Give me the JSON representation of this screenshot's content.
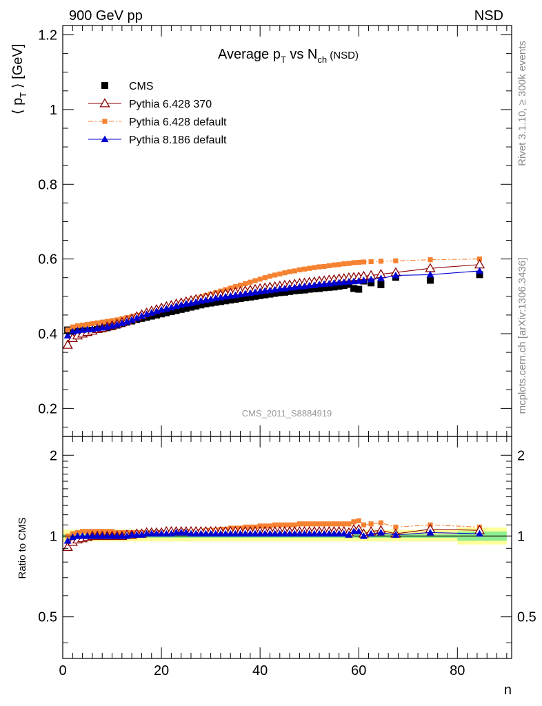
{
  "header": {
    "left": "900 GeV pp",
    "right": "NSD",
    "plot_title_main": "Average p",
    "plot_title_sub": "T",
    "plot_title_mid": " vs N",
    "plot_title_sub2": "ch",
    "plot_title_tail": " (NSD)",
    "analysis_id": "CMS_2011_S8884919",
    "side_text_top": "Rivet 3.1.10, ≥ 300k events",
    "side_text_bottom": "mcplots.cern.ch [arXiv:1306.3436]"
  },
  "axes": {
    "main_ylabel_pre": "⟨ p",
    "main_ylabel_sub": "T",
    "main_ylabel_post": " ⟩ [GeV]",
    "ratio_ylabel": "Ratio to CMS",
    "xlabel": "n"
  },
  "chart_data": [
    {
      "type": "scatter",
      "panel": "main",
      "xlim": [
        0,
        91
      ],
      "ylim": [
        0.125,
        1.225
      ],
      "yticks": [
        0.2,
        0.4,
        0.6,
        0.8,
        1,
        1.2
      ],
      "ytick_labels": [
        "0.2",
        "0.4",
        "0.6",
        "0.8",
        "1",
        "1.2"
      ],
      "legend_position": "top-left",
      "series": [
        {
          "name": "CMS",
          "color": "#000000",
          "marker": "square",
          "x": [
            1,
            2,
            3,
            4,
            5,
            6,
            7,
            8,
            9,
            10,
            11,
            12,
            13,
            14,
            15,
            16,
            17,
            18,
            19,
            20,
            21,
            22,
            23,
            24,
            25,
            26,
            27,
            28,
            29,
            30,
            31,
            32,
            33,
            34,
            35,
            36,
            37,
            38,
            39,
            40,
            41,
            42,
            43,
            44,
            45,
            46,
            47,
            48,
            49,
            50,
            51,
            52,
            53,
            54,
            55,
            56,
            57,
            58,
            59,
            60,
            61,
            62.5,
            64.5,
            67.5,
            74.5,
            84.5
          ],
          "values": [
            0.41,
            0.408,
            0.407,
            0.407,
            0.408,
            0.409,
            0.411,
            0.413,
            0.416,
            0.419,
            0.423,
            0.427,
            0.431,
            0.434,
            0.438,
            0.441,
            0.444,
            0.447,
            0.45,
            0.453,
            0.456,
            0.459,
            0.462,
            0.465,
            0.468,
            0.471,
            0.474,
            0.477,
            0.48,
            0.482,
            0.484,
            0.486,
            0.488,
            0.49,
            0.492,
            0.494,
            0.496,
            0.498,
            0.5,
            0.502,
            0.504,
            0.506,
            0.508,
            0.51,
            0.511,
            0.513,
            0.515,
            0.516,
            0.517,
            0.519,
            0.52,
            0.521,
            0.523,
            0.524,
            0.525,
            0.527,
            0.529,
            0.532,
            0.521,
            0.519,
            0.541,
            0.536,
            0.531,
            0.551,
            0.543,
            0.558
          ]
        },
        {
          "name": "Pythia 6.428 370",
          "color": "#8b0000",
          "marker": "triangle-open",
          "line": "solid",
          "x": [
            1,
            2,
            3,
            4,
            5,
            6,
            7,
            8,
            9,
            10,
            11,
            12,
            13,
            14,
            15,
            16,
            17,
            18,
            19,
            20,
            21,
            22,
            23,
            24,
            25,
            26,
            27,
            28,
            29,
            30,
            31,
            32,
            33,
            34,
            35,
            36,
            37,
            38,
            39,
            40,
            41,
            42,
            43,
            44,
            45,
            46,
            47,
            48,
            49,
            50,
            51,
            52,
            53,
            54,
            55,
            56,
            57,
            58,
            59,
            60,
            61,
            62.5,
            64.5,
            67.5,
            74.5,
            84.5
          ],
          "values": [
            0.37,
            0.388,
            0.395,
            0.4,
            0.404,
            0.408,
            0.412,
            0.415,
            0.419,
            0.422,
            0.426,
            0.43,
            0.435,
            0.44,
            0.446,
            0.451,
            0.456,
            0.461,
            0.465,
            0.469,
            0.473,
            0.476,
            0.48,
            0.483,
            0.486,
            0.489,
            0.492,
            0.494,
            0.497,
            0.5,
            0.502,
            0.504,
            0.507,
            0.509,
            0.511,
            0.513,
            0.515,
            0.517,
            0.519,
            0.521,
            0.523,
            0.525,
            0.526,
            0.528,
            0.53,
            0.531,
            0.533,
            0.535,
            0.536,
            0.538,
            0.539,
            0.541,
            0.542,
            0.544,
            0.545,
            0.547,
            0.548,
            0.55,
            0.551,
            0.552,
            0.554,
            0.556,
            0.559,
            0.564,
            0.575,
            0.585
          ]
        },
        {
          "name": "Pythia 6.428 default",
          "color": "#f58231",
          "marker": "square-small",
          "line": "dashdot",
          "x": [
            1,
            2,
            3,
            4,
            5,
            6,
            7,
            8,
            9,
            10,
            11,
            12,
            13,
            14,
            15,
            16,
            17,
            18,
            19,
            20,
            21,
            22,
            23,
            24,
            25,
            26,
            27,
            28,
            29,
            30,
            31,
            32,
            33,
            34,
            35,
            36,
            37,
            38,
            39,
            40,
            41,
            42,
            43,
            44,
            45,
            46,
            47,
            48,
            49,
            50,
            51,
            52,
            53,
            54,
            55,
            56,
            57,
            58,
            59,
            60,
            61,
            62.5,
            64.5,
            67.5,
            74.5,
            84.5
          ],
          "values": [
            0.41,
            0.418,
            0.421,
            0.423,
            0.425,
            0.427,
            0.429,
            0.431,
            0.433,
            0.435,
            0.437,
            0.44,
            0.443,
            0.446,
            0.449,
            0.452,
            0.455,
            0.459,
            0.462,
            0.466,
            0.47,
            0.474,
            0.478,
            0.482,
            0.486,
            0.49,
            0.494,
            0.498,
            0.502,
            0.506,
            0.51,
            0.514,
            0.518,
            0.522,
            0.526,
            0.53,
            0.534,
            0.538,
            0.542,
            0.546,
            0.55,
            0.554,
            0.557,
            0.56,
            0.563,
            0.566,
            0.568,
            0.571,
            0.573,
            0.575,
            0.577,
            0.579,
            0.58,
            0.582,
            0.584,
            0.585,
            0.587,
            0.588,
            0.59,
            0.591,
            0.592,
            0.593,
            0.594,
            0.595,
            0.598,
            0.6
          ]
        },
        {
          "name": "Pythia 8.186 default",
          "color": "#0000d0",
          "marker": "triangle",
          "line": "solid",
          "x": [
            1,
            2,
            3,
            4,
            5,
            6,
            7,
            8,
            9,
            10,
            11,
            12,
            13,
            14,
            15,
            16,
            17,
            18,
            19,
            20,
            21,
            22,
            23,
            24,
            25,
            26,
            27,
            28,
            29,
            30,
            31,
            32,
            33,
            34,
            35,
            36,
            37,
            38,
            39,
            40,
            41,
            42,
            43,
            44,
            45,
            46,
            47,
            48,
            49,
            50,
            51,
            52,
            53,
            54,
            55,
            56,
            57,
            58,
            59,
            60,
            61,
            62.5,
            64.5,
            67.5,
            74.5,
            84.5
          ],
          "values": [
            0.395,
            0.405,
            0.408,
            0.41,
            0.411,
            0.412,
            0.414,
            0.416,
            0.418,
            0.421,
            0.424,
            0.428,
            0.432,
            0.437,
            0.442,
            0.447,
            0.452,
            0.456,
            0.46,
            0.464,
            0.467,
            0.47,
            0.474,
            0.477,
            0.48,
            0.482,
            0.485,
            0.488,
            0.49,
            0.492,
            0.495,
            0.497,
            0.499,
            0.501,
            0.503,
            0.505,
            0.507,
            0.509,
            0.511,
            0.513,
            0.515,
            0.516,
            0.518,
            0.52,
            0.521,
            0.523,
            0.524,
            0.526,
            0.527,
            0.529,
            0.53,
            0.532,
            0.533,
            0.534,
            0.536,
            0.537,
            0.538,
            0.539,
            0.54,
            0.541,
            0.543,
            0.545,
            0.548,
            0.556,
            0.558,
            0.568
          ]
        }
      ]
    },
    {
      "type": "scatter",
      "panel": "ratio",
      "xlim": [
        0,
        91
      ],
      "ylim": [
        0.35,
        2.35
      ],
      "yscale": "log",
      "yticks": [
        0.5,
        1,
        2
      ],
      "ytick_labels": [
        "0.5",
        "1",
        "2"
      ],
      "xticks": [
        0,
        20,
        40,
        60,
        80
      ],
      "xtick_labels": [
        "0",
        "20",
        "40",
        "60",
        "80"
      ],
      "reference_line": 1,
      "bands": {
        "stat_color": "#90ee90",
        "total_color": "#ffff99",
        "segments": [
          {
            "x": [
              0,
              80
            ],
            "stat": [
              0.985,
              1.015
            ],
            "total": [
              0.955,
              1.055
            ]
          },
          {
            "x": [
              80,
              90
            ],
            "stat": [
              0.96,
              1.04
            ],
            "total": [
              0.93,
              1.075
            ]
          }
        ]
      },
      "series": [
        {
          "name": "Pythia 6.428 370",
          "color": "#8b0000",
          "marker": "triangle-open",
          "line": "solid",
          "x": [
            1,
            2,
            3,
            4,
            5,
            6,
            7,
            8,
            9,
            10,
            11,
            12,
            13,
            14,
            15,
            16,
            17,
            18,
            19,
            20,
            21,
            22,
            23,
            24,
            25,
            26,
            27,
            28,
            29,
            30,
            31,
            32,
            33,
            34,
            35,
            36,
            37,
            38,
            39,
            40,
            41,
            42,
            43,
            44,
            45,
            46,
            47,
            48,
            49,
            50,
            51,
            52,
            53,
            54,
            55,
            56,
            57,
            58,
            59,
            60,
            61,
            62.5,
            64.5,
            67.5,
            74.5,
            84.5
          ],
          "values": [
            0.91,
            0.95,
            0.97,
            0.98,
            0.99,
            1.0,
            1.0,
            1.0,
            1.0,
            1.0,
            1.0,
            1.0,
            1.01,
            1.01,
            1.02,
            1.02,
            1.03,
            1.03,
            1.03,
            1.03,
            1.04,
            1.04,
            1.04,
            1.04,
            1.04,
            1.04,
            1.04,
            1.04,
            1.04,
            1.04,
            1.04,
            1.04,
            1.04,
            1.04,
            1.04,
            1.04,
            1.04,
            1.04,
            1.04,
            1.04,
            1.04,
            1.04,
            1.04,
            1.04,
            1.04,
            1.04,
            1.04,
            1.04,
            1.04,
            1.04,
            1.04,
            1.04,
            1.04,
            1.04,
            1.04,
            1.04,
            1.04,
            1.03,
            1.06,
            1.06,
            1.02,
            1.04,
            1.05,
            1.02,
            1.06,
            1.05
          ]
        },
        {
          "name": "Pythia 6.428 default",
          "color": "#f58231",
          "marker": "square-small",
          "line": "dashdot",
          "x": [
            1,
            2,
            3,
            4,
            5,
            6,
            7,
            8,
            9,
            10,
            11,
            12,
            13,
            14,
            15,
            16,
            17,
            18,
            19,
            20,
            21,
            22,
            23,
            24,
            25,
            26,
            27,
            28,
            29,
            30,
            31,
            32,
            33,
            34,
            35,
            36,
            37,
            38,
            39,
            40,
            41,
            42,
            43,
            44,
            45,
            46,
            47,
            48,
            49,
            50,
            51,
            52,
            53,
            54,
            55,
            56,
            57,
            58,
            59,
            60,
            61,
            62.5,
            64.5,
            67.5,
            74.5,
            84.5
          ],
          "values": [
            1.0,
            1.02,
            1.03,
            1.04,
            1.04,
            1.04,
            1.04,
            1.04,
            1.04,
            1.04,
            1.03,
            1.03,
            1.03,
            1.03,
            1.03,
            1.03,
            1.03,
            1.03,
            1.03,
            1.03,
            1.03,
            1.03,
            1.03,
            1.04,
            1.04,
            1.04,
            1.04,
            1.04,
            1.05,
            1.05,
            1.05,
            1.06,
            1.06,
            1.07,
            1.07,
            1.07,
            1.08,
            1.08,
            1.08,
            1.09,
            1.09,
            1.09,
            1.1,
            1.1,
            1.1,
            1.1,
            1.1,
            1.11,
            1.11,
            1.11,
            1.11,
            1.11,
            1.11,
            1.11,
            1.11,
            1.11,
            1.11,
            1.11,
            1.13,
            1.14,
            1.1,
            1.11,
            1.12,
            1.08,
            1.1,
            1.08
          ]
        },
        {
          "name": "Pythia 8.186 default",
          "color": "#0000d0",
          "marker": "triangle",
          "line": "solid",
          "x": [
            1,
            2,
            3,
            4,
            5,
            6,
            7,
            8,
            9,
            10,
            11,
            12,
            13,
            14,
            15,
            16,
            17,
            18,
            19,
            20,
            21,
            22,
            23,
            24,
            25,
            26,
            27,
            28,
            29,
            30,
            31,
            32,
            33,
            34,
            35,
            36,
            37,
            38,
            39,
            40,
            41,
            42,
            43,
            44,
            45,
            46,
            47,
            48,
            49,
            50,
            51,
            52,
            53,
            54,
            55,
            56,
            57,
            58,
            59,
            60,
            61,
            62.5,
            64.5,
            67.5,
            74.5,
            84.5
          ],
          "values": [
            0.96,
            0.99,
            1.0,
            1.0,
            1.0,
            1.0,
            1.0,
            1.0,
            1.0,
            1.0,
            1.0,
            1.0,
            1.0,
            1.01,
            1.01,
            1.01,
            1.02,
            1.02,
            1.02,
            1.02,
            1.02,
            1.02,
            1.03,
            1.03,
            1.03,
            1.02,
            1.02,
            1.02,
            1.02,
            1.02,
            1.02,
            1.02,
            1.02,
            1.02,
            1.02,
            1.02,
            1.02,
            1.02,
            1.02,
            1.02,
            1.02,
            1.02,
            1.02,
            1.02,
            1.02,
            1.02,
            1.02,
            1.02,
            1.02,
            1.02,
            1.02,
            1.02,
            1.02,
            1.02,
            1.02,
            1.02,
            1.02,
            1.01,
            1.04,
            1.04,
            1.0,
            1.02,
            1.03,
            1.01,
            1.03,
            1.02
          ]
        }
      ]
    }
  ]
}
